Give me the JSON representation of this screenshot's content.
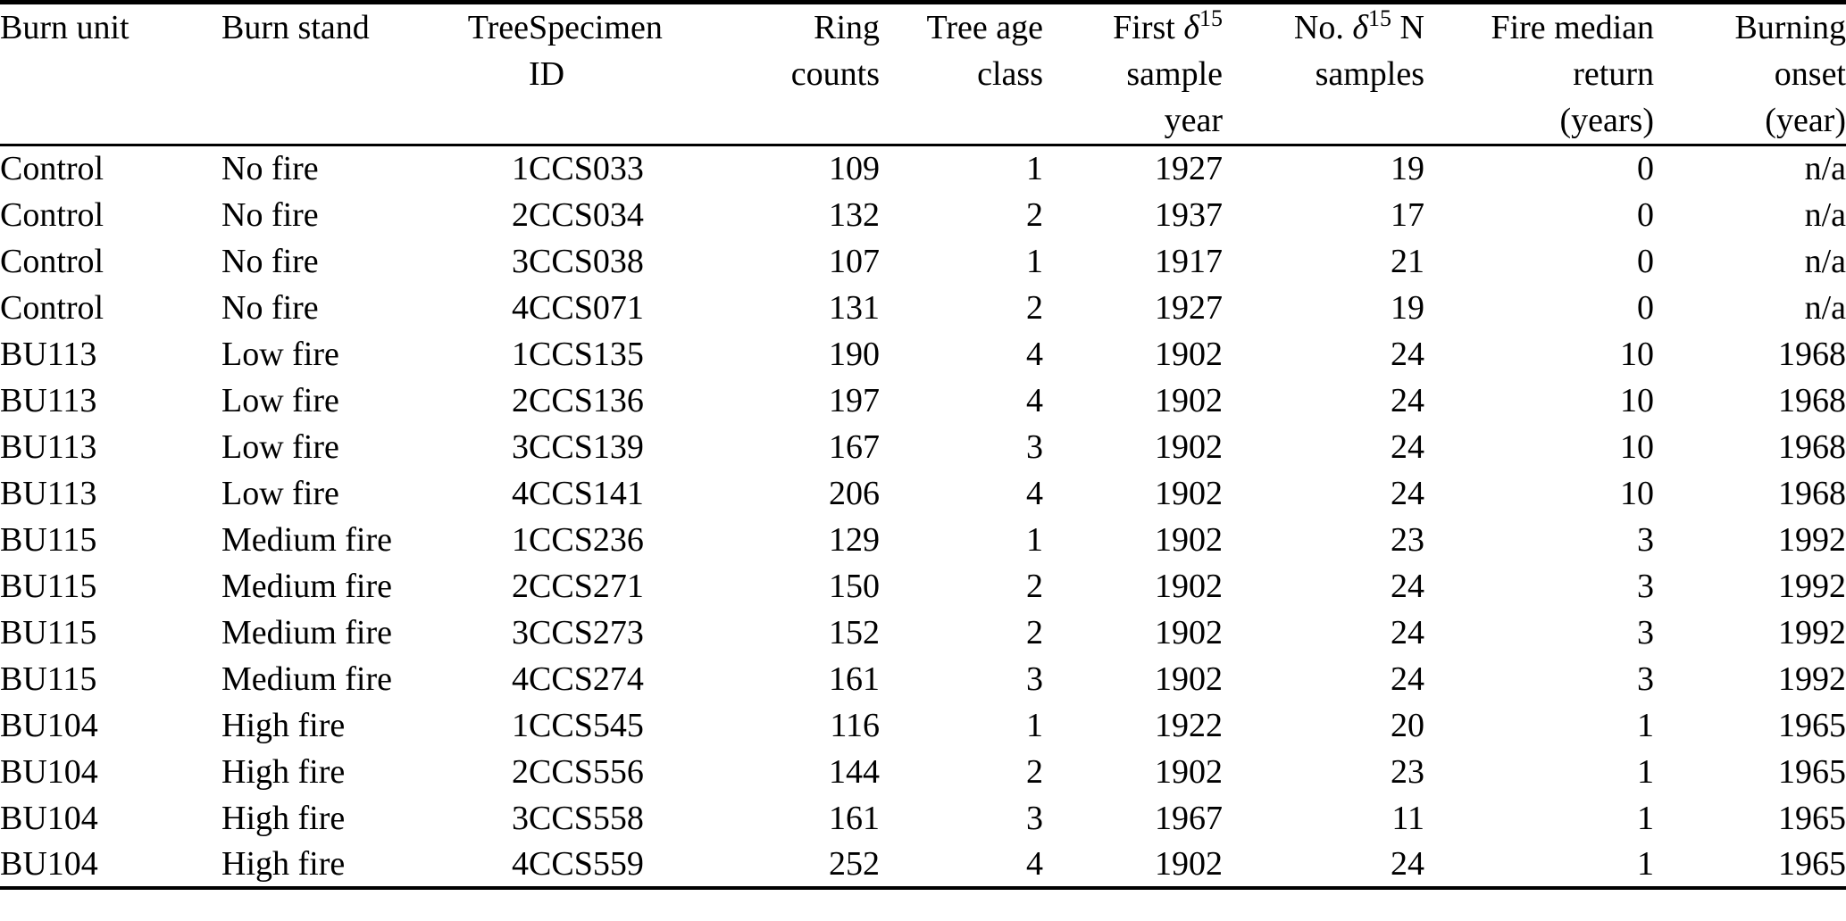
{
  "table": {
    "columns": [
      {
        "id": "burn-unit",
        "label_lines": [
          "Burn unit"
        ]
      },
      {
        "id": "burn-stand",
        "label_lines": [
          "Burn stand"
        ]
      },
      {
        "id": "tree",
        "label_lines": [
          "Tree"
        ]
      },
      {
        "id": "specimen-id",
        "label_lines": [
          "Specimen",
          "ID"
        ]
      },
      {
        "id": "ring-counts",
        "label_lines": [
          "Ring",
          "counts"
        ]
      },
      {
        "id": "tree-age-class",
        "label_lines": [
          "Tree age",
          "class"
        ]
      },
      {
        "id": "first-d15-sample-year",
        "label_lines": [
          "First δ^{15}",
          "sample",
          "year"
        ]
      },
      {
        "id": "no-d15n-samples",
        "label_lines": [
          "No. δ^{15} N",
          "samples"
        ]
      },
      {
        "id": "fire-median-return",
        "label_lines": [
          "Fire median",
          "return",
          "(years)"
        ]
      },
      {
        "id": "burning-onset",
        "label_lines": [
          "Burning",
          "onset",
          "(year)"
        ]
      }
    ],
    "rows": [
      [
        "Control",
        "No fire",
        "1",
        "CCS033",
        "109",
        "1",
        "1927",
        "19",
        "0",
        "n/a"
      ],
      [
        "Control",
        "No fire",
        "2",
        "CCS034",
        "132",
        "2",
        "1937",
        "17",
        "0",
        "n/a"
      ],
      [
        "Control",
        "No fire",
        "3",
        "CCS038",
        "107",
        "1",
        "1917",
        "21",
        "0",
        "n/a"
      ],
      [
        "Control",
        "No fire",
        "4",
        "CCS071",
        "131",
        "2",
        "1927",
        "19",
        "0",
        "n/a"
      ],
      [
        "BU113",
        "Low fire",
        "1",
        "CCS135",
        "190",
        "4",
        "1902",
        "24",
        "10",
        "1968"
      ],
      [
        "BU113",
        "Low fire",
        "2",
        "CCS136",
        "197",
        "4",
        "1902",
        "24",
        "10",
        "1968"
      ],
      [
        "BU113",
        "Low fire",
        "3",
        "CCS139",
        "167",
        "3",
        "1902",
        "24",
        "10",
        "1968"
      ],
      [
        "BU113",
        "Low fire",
        "4",
        "CCS141",
        "206",
        "4",
        "1902",
        "24",
        "10",
        "1968"
      ],
      [
        "BU115",
        "Medium fire",
        "1",
        "CCS236",
        "129",
        "1",
        "1902",
        "23",
        "3",
        "1992"
      ],
      [
        "BU115",
        "Medium fire",
        "2",
        "CCS271",
        "150",
        "2",
        "1902",
        "24",
        "3",
        "1992"
      ],
      [
        "BU115",
        "Medium fire",
        "3",
        "CCS273",
        "152",
        "2",
        "1902",
        "24",
        "3",
        "1992"
      ],
      [
        "BU115",
        "Medium fire",
        "4",
        "CCS274",
        "161",
        "3",
        "1902",
        "24",
        "3",
        "1992"
      ],
      [
        "BU104",
        "High fire",
        "1",
        "CCS545",
        "116",
        "1",
        "1922",
        "20",
        "1",
        "1965"
      ],
      [
        "BU104",
        "High fire",
        "2",
        "CCS556",
        "144",
        "2",
        "1902",
        "23",
        "1",
        "1965"
      ],
      [
        "BU104",
        "High fire",
        "3",
        "CCS558",
        "161",
        "3",
        "1967",
        "11",
        "1",
        "1965"
      ],
      [
        "BU104",
        "High fire",
        "4",
        "CCS559",
        "252",
        "4",
        "1902",
        "24",
        "1",
        "1965"
      ]
    ],
    "colors": {
      "text": "#000000",
      "background": "#ffffff",
      "rule": "#000000"
    }
  }
}
